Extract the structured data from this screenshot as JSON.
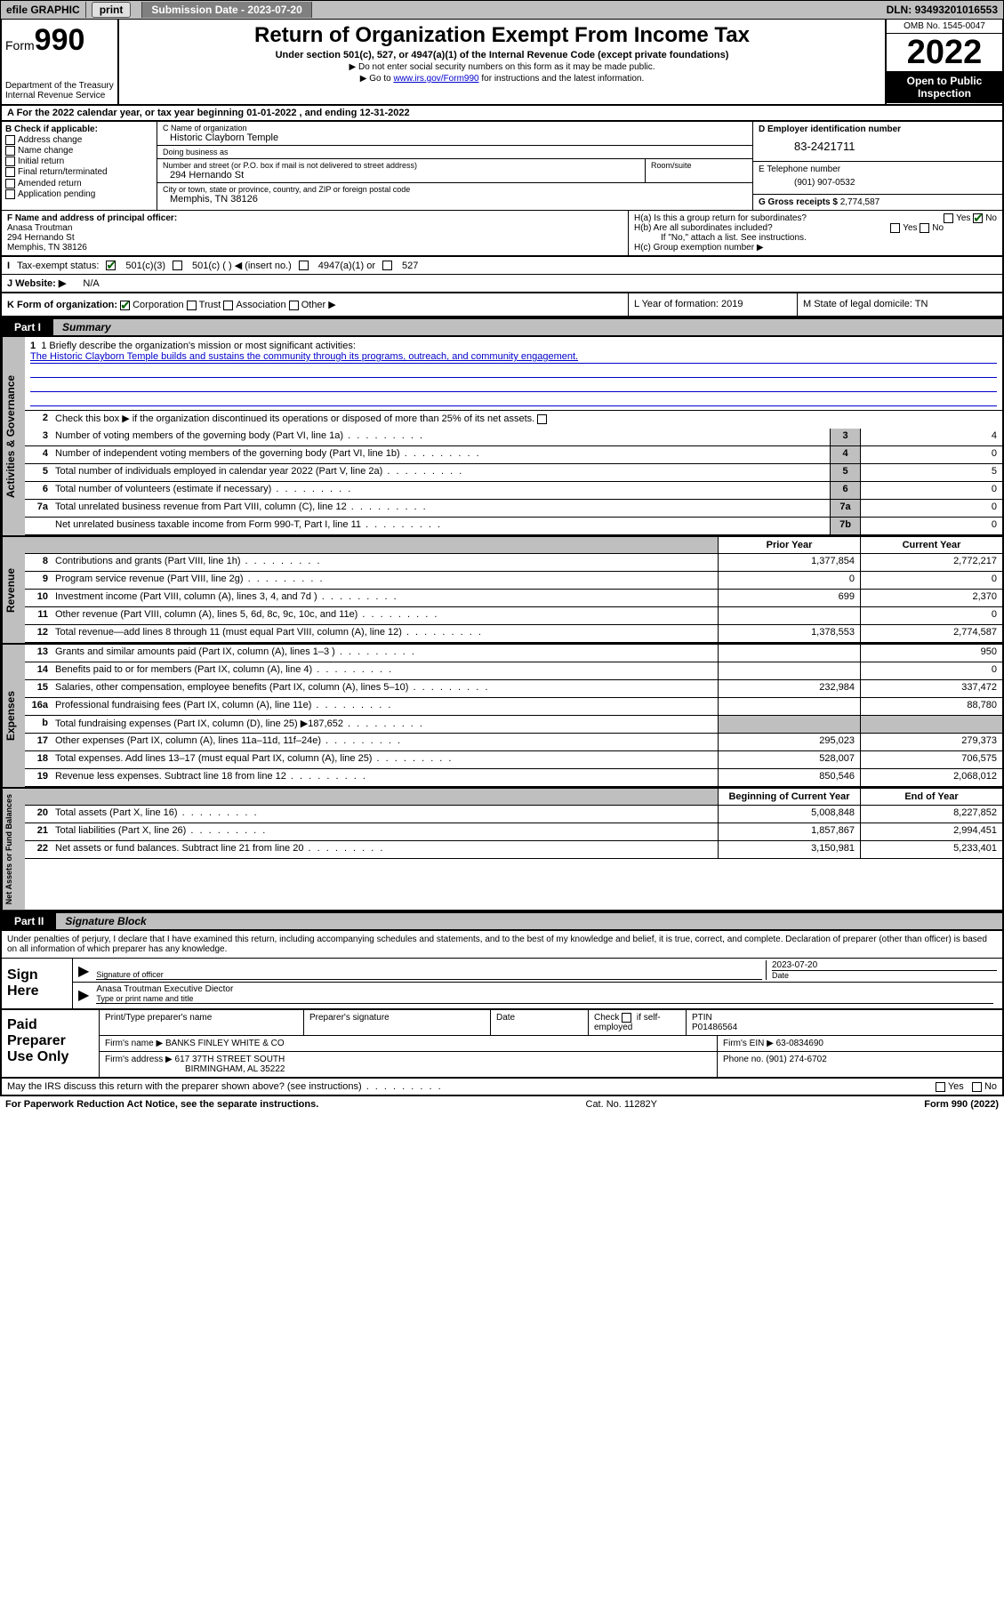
{
  "topbar": {
    "efile": "efile GRAPHIC",
    "print": "print",
    "sub_label": "Submission Date - ",
    "sub_date": "2023-07-20",
    "dln_label": "DLN: ",
    "dln": "93493201016553"
  },
  "header": {
    "form_prefix": "Form",
    "form_num": "990",
    "dept": "Department of the Treasury",
    "irs": "Internal Revenue Service",
    "title": "Return of Organization Exempt From Income Tax",
    "subtitle": "Under section 501(c), 527, or 4947(a)(1) of the Internal Revenue Code (except private foundations)",
    "note1": "▶ Do not enter social security numbers on this form as it may be made public.",
    "note2_pre": "▶ Go to ",
    "note2_link": "www.irs.gov/Form990",
    "note2_post": " for instructions and the latest information.",
    "omb": "OMB No. 1545-0047",
    "year": "2022",
    "open": "Open to Public Inspection"
  },
  "row_a": {
    "text": "A For the 2022 calendar year, or tax year beginning 01-01-2022     , and ending 12-31-2022"
  },
  "col_b": {
    "header": "B Check if applicable:",
    "items": [
      "Address change",
      "Name change",
      "Initial return",
      "Final return/terminated",
      "Amended return",
      "Application pending"
    ]
  },
  "col_c": {
    "name_lbl": "C Name of organization",
    "name": "Historic Clayborn Temple",
    "dba_lbl": "Doing business as",
    "dba": "",
    "addr_lbl": "Number and street (or P.O. box if mail is not delivered to street address)",
    "room_lbl": "Room/suite",
    "addr": "294 Hernando St",
    "city_lbl": "City or town, state or province, country, and ZIP or foreign postal code",
    "city": "Memphis, TN  38126"
  },
  "col_d": {
    "ein_lbl": "D Employer identification number",
    "ein": "83-2421711",
    "phone_lbl": "E Telephone number",
    "phone": "(901) 907-0532",
    "gross_lbl": "G Gross receipts $ ",
    "gross": "2,774,587"
  },
  "row_f": {
    "lbl": "F Name and address of principal officer:",
    "name": "Anasa Troutman",
    "addr1": "294 Hernando St",
    "addr2": "Memphis, TN  38126"
  },
  "row_h": {
    "ha": "H(a)  Is this a group return for subordinates?",
    "hb": "H(b)  Are all subordinates included?",
    "hb_note": "If \"No,\" attach a list. See instructions.",
    "hc": "H(c)  Group exemption number ▶",
    "yes": "Yes",
    "no": "No"
  },
  "row_i": {
    "lbl": "Tax-exempt status:",
    "o1": "501(c)(3)",
    "o2": "501(c) (  ) ◀ (insert no.)",
    "o3": "4947(a)(1) or",
    "o4": "527"
  },
  "row_j": {
    "lbl": "J   Website: ▶",
    "val": "N/A"
  },
  "row_k": {
    "left_lbl": "K Form of organization:",
    "opts": [
      "Corporation",
      "Trust",
      "Association",
      "Other ▶"
    ],
    "mid": "L Year of formation: 2019",
    "right": "M State of legal domicile: TN"
  },
  "part1": {
    "tab": "Part I",
    "title": "Summary",
    "l1_lbl": "1  Briefly describe the organization's mission or most significant activities:",
    "l1_text": "The Historic Clayborn Temple builds and sustains the community through its programs, outreach, and community engagement.",
    "l2": "Check this box ▶       if the organization discontinued its operations or disposed of more than 25% of its net assets.",
    "gov_lines": [
      {
        "n": "3",
        "d": "Number of voting members of the governing body (Part VI, line 1a)",
        "box": "3",
        "v": "4"
      },
      {
        "n": "4",
        "d": "Number of independent voting members of the governing body (Part VI, line 1b)",
        "box": "4",
        "v": "0"
      },
      {
        "n": "5",
        "d": "Total number of individuals employed in calendar year 2022 (Part V, line 2a)",
        "box": "5",
        "v": "5"
      },
      {
        "n": "6",
        "d": "Total number of volunteers (estimate if necessary)",
        "box": "6",
        "v": "0"
      },
      {
        "n": "7a",
        "d": "Total unrelated business revenue from Part VIII, column (C), line 12",
        "box": "7a",
        "v": "0"
      },
      {
        "n": "",
        "d": "Net unrelated business taxable income from Form 990-T, Part I, line 11",
        "box": "7b",
        "v": "0"
      }
    ],
    "col_prior": "Prior Year",
    "col_current": "Current Year",
    "rev_lines": [
      {
        "n": "8",
        "d": "Contributions and grants (Part VIII, line 1h)",
        "p": "1,377,854",
        "c": "2,772,217"
      },
      {
        "n": "9",
        "d": "Program service revenue (Part VIII, line 2g)",
        "p": "0",
        "c": "0"
      },
      {
        "n": "10",
        "d": "Investment income (Part VIII, column (A), lines 3, 4, and 7d )",
        "p": "699",
        "c": "2,370"
      },
      {
        "n": "11",
        "d": "Other revenue (Part VIII, column (A), lines 5, 6d, 8c, 9c, 10c, and 11e)",
        "p": "",
        "c": "0"
      },
      {
        "n": "12",
        "d": "Total revenue—add lines 8 through 11 (must equal Part VIII, column (A), line 12)",
        "p": "1,378,553",
        "c": "2,774,587"
      }
    ],
    "exp_lines": [
      {
        "n": "13",
        "d": "Grants and similar amounts paid (Part IX, column (A), lines 1–3 )",
        "p": "",
        "c": "950"
      },
      {
        "n": "14",
        "d": "Benefits paid to or for members (Part IX, column (A), line 4)",
        "p": "",
        "c": "0"
      },
      {
        "n": "15",
        "d": "Salaries, other compensation, employee benefits (Part IX, column (A), lines 5–10)",
        "p": "232,984",
        "c": "337,472"
      },
      {
        "n": "16a",
        "d": "Professional fundraising fees (Part IX, column (A), line 11e)",
        "p": "",
        "c": "88,780"
      },
      {
        "n": "b",
        "d": "Total fundraising expenses (Part IX, column (D), line 25) ▶187,652",
        "p": "GREY",
        "c": "GREY"
      },
      {
        "n": "17",
        "d": "Other expenses (Part IX, column (A), lines 11a–11d, 11f–24e)",
        "p": "295,023",
        "c": "279,373"
      },
      {
        "n": "18",
        "d": "Total expenses. Add lines 13–17 (must equal Part IX, column (A), line 25)",
        "p": "528,007",
        "c": "706,575"
      },
      {
        "n": "19",
        "d": "Revenue less expenses. Subtract line 18 from line 12",
        "p": "850,546",
        "c": "2,068,012"
      }
    ],
    "col_begin": "Beginning of Current Year",
    "col_end": "End of Year",
    "na_lines": [
      {
        "n": "20",
        "d": "Total assets (Part X, line 16)",
        "p": "5,008,848",
        "c": "8,227,852"
      },
      {
        "n": "21",
        "d": "Total liabilities (Part X, line 26)",
        "p": "1,857,867",
        "c": "2,994,451"
      },
      {
        "n": "22",
        "d": "Net assets or fund balances. Subtract line 21 from line 20",
        "p": "3,150,981",
        "c": "5,233,401"
      }
    ],
    "vtab_gov": "Activities & Governance",
    "vtab_rev": "Revenue",
    "vtab_exp": "Expenses",
    "vtab_na": "Net Assets or Fund Balances"
  },
  "part2": {
    "tab": "Part II",
    "title": "Signature Block",
    "decl": "Under penalties of perjury, I declare that I have examined this return, including accompanying schedules and statements, and to the best of my knowledge and belief, it is true, correct, and complete. Declaration of preparer (other than officer) is based on all information of which preparer has any knowledge.",
    "sign_here": "Sign Here",
    "sig_officer": "Signature of officer",
    "sig_date": "Date",
    "sig_date_val": "2023-07-20",
    "name_title": "Anasa Troutman  Executive Diector",
    "name_title_lbl": "Type or print name and title"
  },
  "prep": {
    "label": "Paid Preparer Use Only",
    "h1": "Print/Type preparer's name",
    "h2": "Preparer's signature",
    "h3": "Date",
    "h4_pre": "Check",
    "h4_post": "if self-employed",
    "h5": "PTIN",
    "ptin": "P01486564",
    "firm_name_lbl": "Firm's name      ▶",
    "firm_name": "BANKS FINLEY WHITE & CO",
    "firm_ein_lbl": "Firm's EIN ▶",
    "firm_ein": "63-0834690",
    "firm_addr_lbl": "Firm's address ▶",
    "firm_addr1": "617 37TH STREET SOUTH",
    "firm_addr2": "BIRMINGHAM, AL  35222",
    "phone_lbl": "Phone no. ",
    "phone": "(901) 274-6702"
  },
  "footer": {
    "discuss": "May the IRS discuss this return with the preparer shown above? (see instructions)",
    "yes": "Yes",
    "no": "No",
    "pra": "For Paperwork Reduction Act Notice, see the separate instructions.",
    "cat": "Cat. No. 11282Y",
    "form": "Form 990 (2022)"
  }
}
